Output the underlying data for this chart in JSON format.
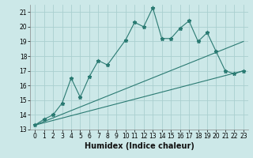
{
  "xlabel": "Humidex (Indice chaleur)",
  "ylabel": "",
  "xlim": [
    -0.5,
    23.5
  ],
  "ylim": [
    13,
    21.5
  ],
  "yticks": [
    13,
    14,
    15,
    16,
    17,
    18,
    19,
    20,
    21
  ],
  "xticks": [
    0,
    1,
    2,
    3,
    4,
    5,
    6,
    7,
    8,
    9,
    10,
    11,
    12,
    13,
    14,
    15,
    16,
    17,
    18,
    19,
    20,
    21,
    22,
    23
  ],
  "background_color": "#cce8e8",
  "grid_color": "#aacfcf",
  "line_color": "#2a7a72",
  "jagged": {
    "x": [
      0,
      1,
      2,
      3,
      4,
      5,
      6,
      7,
      8,
      10,
      11,
      12,
      13,
      14,
      15,
      16,
      17,
      18,
      19,
      20,
      21,
      22,
      23
    ],
    "y": [
      13.3,
      13.7,
      14.0,
      14.8,
      16.5,
      15.2,
      16.6,
      17.7,
      17.4,
      19.1,
      20.3,
      20.0,
      21.3,
      19.2,
      19.2,
      19.9,
      20.4,
      19.0,
      19.6,
      18.3,
      17.0,
      16.8,
      17.0
    ]
  },
  "line_upper": {
    "x": [
      0,
      23
    ],
    "y": [
      13.3,
      19.0
    ]
  },
  "line_lower": {
    "x": [
      0,
      23
    ],
    "y": [
      13.3,
      17.0
    ]
  }
}
